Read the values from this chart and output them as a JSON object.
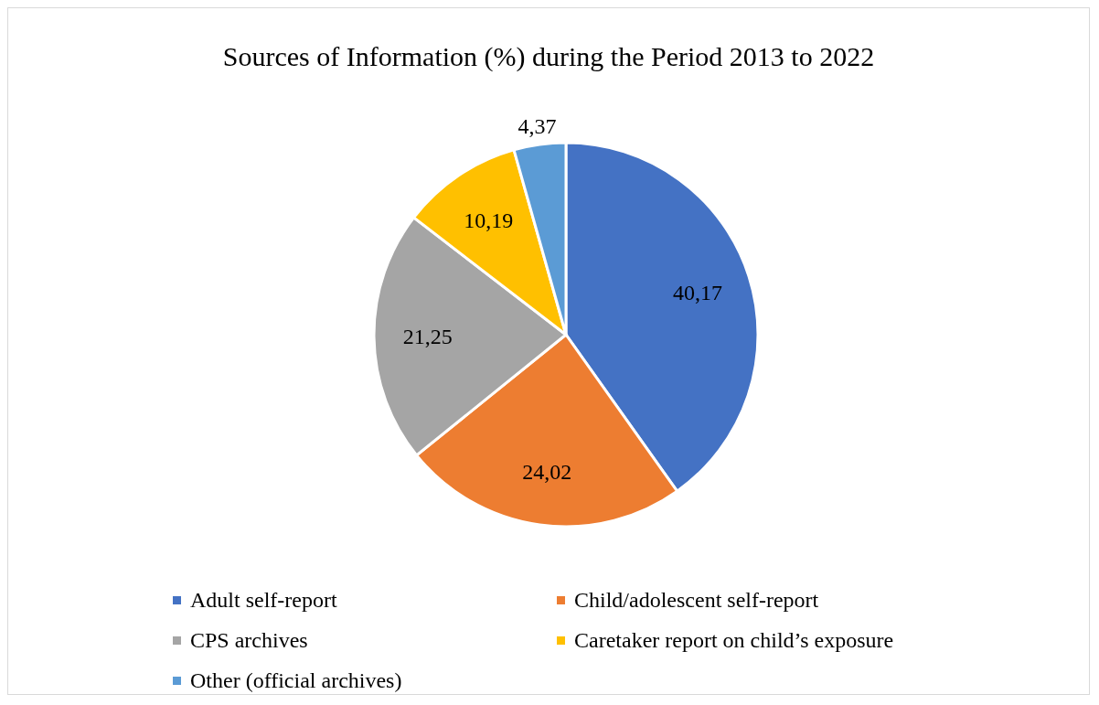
{
  "chart_data": {
    "type": "pie",
    "title": "Sources of Information (%) during the Period 2013 to 2022",
    "categories": [
      "Adult self-report",
      "Child/adolescent self-report",
      "CPS archives",
      "Caretaker report on child’s exposure",
      "Other (official archives)"
    ],
    "values": [
      40.17,
      24.02,
      21.25,
      10.19,
      4.37
    ],
    "value_labels": [
      "40,17",
      "24,02",
      "21,25",
      "10,19",
      "4,37"
    ],
    "colors": [
      "#4472c4",
      "#ed7d31",
      "#a5a5a5",
      "#ffc000",
      "#5b9bd5"
    ],
    "legend": "bottom"
  }
}
